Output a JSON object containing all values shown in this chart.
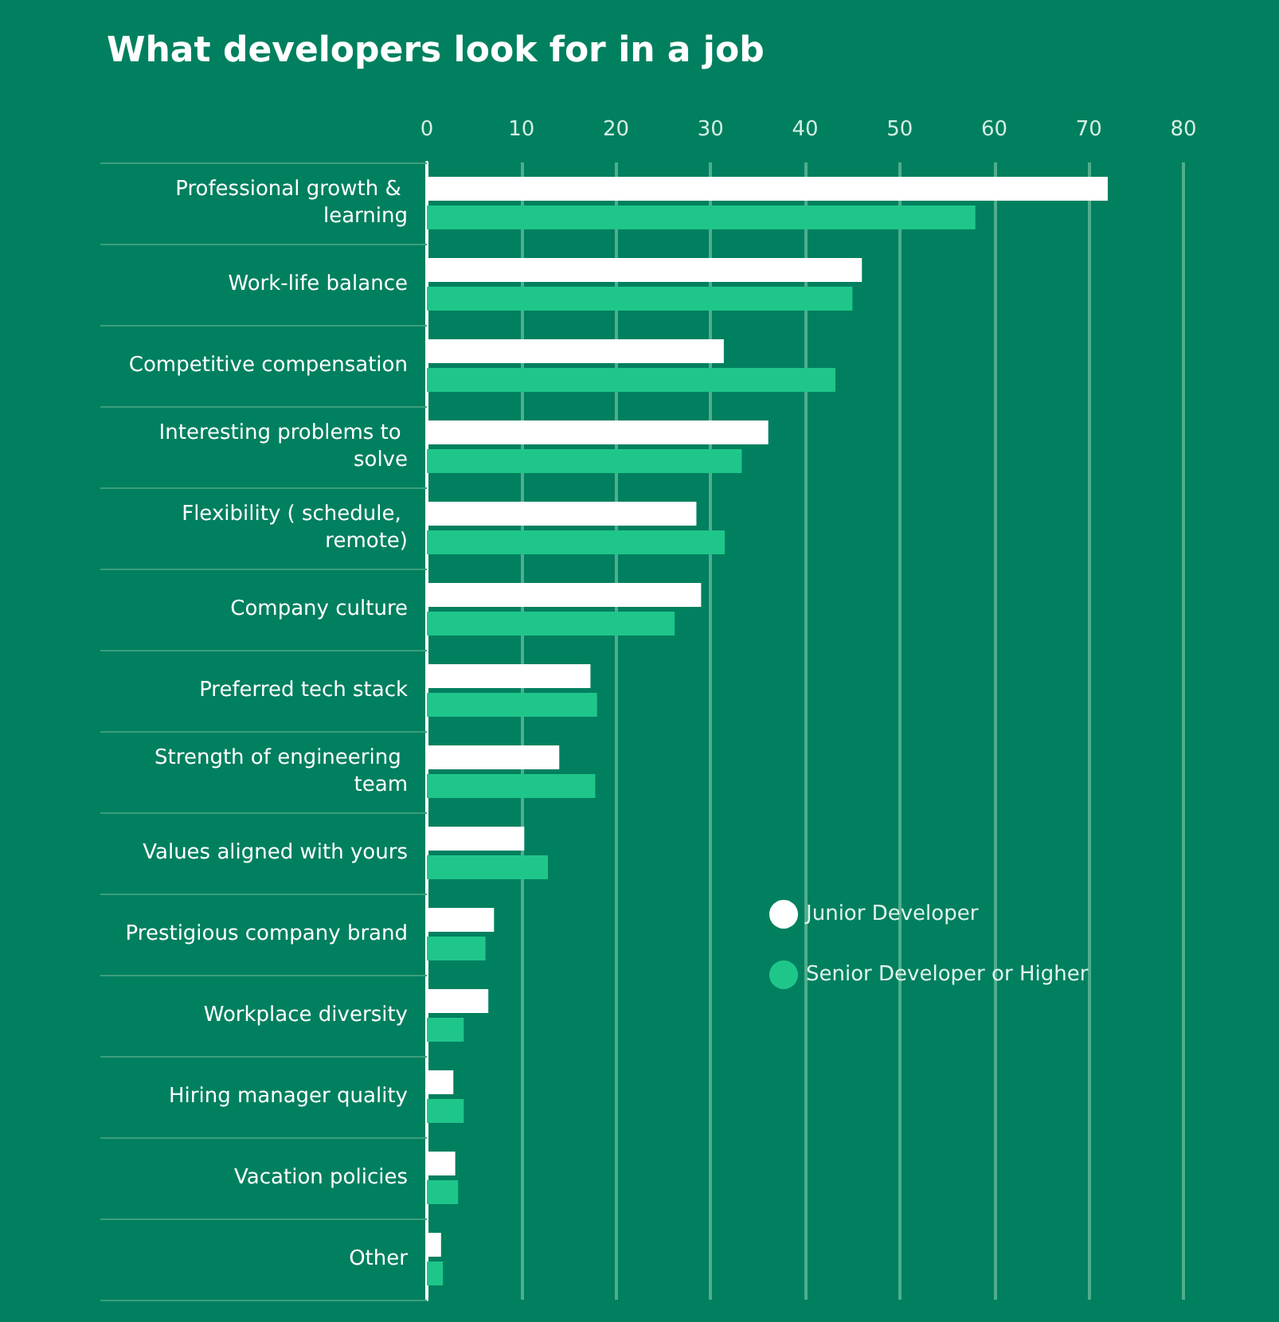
{
  "chart_data": {
    "type": "bar",
    "orientation": "horizontal",
    "title": "What developers look for in a job",
    "categories": [
      "Professional growth & learning",
      "Work-life balance",
      "Competitive compensation",
      "Interesting problems to solve",
      "Flexibility ( schedule, remote)",
      "Company culture",
      "Preferred tech stack",
      "Strength of engineering team",
      "Values aligned with yours",
      "Prestigious company brand",
      "Workplace diversity",
      "Hiring manager quality",
      "Vacation policies",
      "Other"
    ],
    "series": [
      {
        "name": "Junior Developer",
        "color": "#ffffff",
        "values": [
          72,
          46,
          31.4,
          36.1,
          28.5,
          29,
          17.3,
          14,
          10.3,
          7.1,
          6.5,
          2.8,
          3,
          1.5
        ]
      },
      {
        "name": "Senior Developer or Higher",
        "color": "#1fc68a",
        "values": [
          58,
          45,
          43.2,
          33.3,
          31.5,
          26.2,
          18,
          17.8,
          12.8,
          6.2,
          3.9,
          3.9,
          3.3,
          1.7
        ]
      }
    ],
    "xlim": [
      0,
      80
    ],
    "xticks": [
      0,
      10,
      20,
      30,
      40,
      50,
      60,
      70,
      80
    ],
    "grid": "x",
    "legend": "right"
  }
}
